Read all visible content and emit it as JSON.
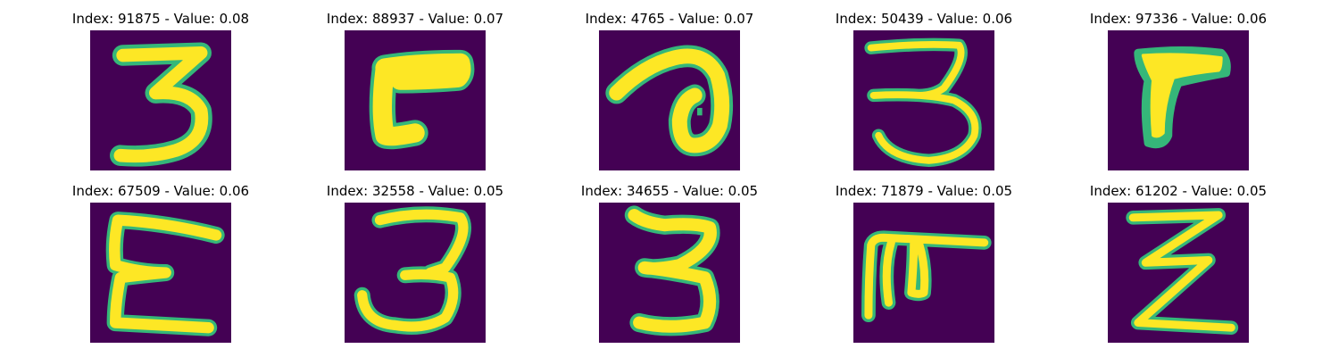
{
  "figure": {
    "panels": [
      {
        "index_label": "Index: 91875 - Value: 0.08",
        "glyph": "3",
        "index": 91875,
        "value": 0.08
      },
      {
        "index_label": "Index: 88937 - Value: 0.07",
        "glyph": "L-shape",
        "index": 88937,
        "value": 0.07
      },
      {
        "index_label": "Index: 4765 - Value: 0.07",
        "glyph": "a-loop",
        "index": 4765,
        "value": 0.07
      },
      {
        "index_label": "Index: 50439 - Value: 0.06",
        "glyph": "3",
        "index": 50439,
        "value": 0.06
      },
      {
        "index_label": "Index: 97336 - Value: 0.06",
        "glyph": "7-blob",
        "index": 97336,
        "value": 0.06
      },
      {
        "index_label": "Index: 67509 - Value: 0.06",
        "glyph": "E",
        "index": 67509,
        "value": 0.06
      },
      {
        "index_label": "Index: 32558 - Value: 0.05",
        "glyph": "3",
        "index": 32558,
        "value": 0.05
      },
      {
        "index_label": "Index: 34655 - Value: 0.05",
        "glyph": "3",
        "index": 34655,
        "value": 0.05
      },
      {
        "index_label": "Index: 71879 - Value: 0.05",
        "glyph": "F-shape",
        "index": 71879,
        "value": 0.05
      },
      {
        "index_label": "Index: 61202 - Value: 0.05",
        "glyph": "Z",
        "index": 61202,
        "value": 0.05
      }
    ],
    "colors": {
      "background": "#440154",
      "stroke_core": "#fde725",
      "stroke_edge": "#35b779"
    }
  }
}
